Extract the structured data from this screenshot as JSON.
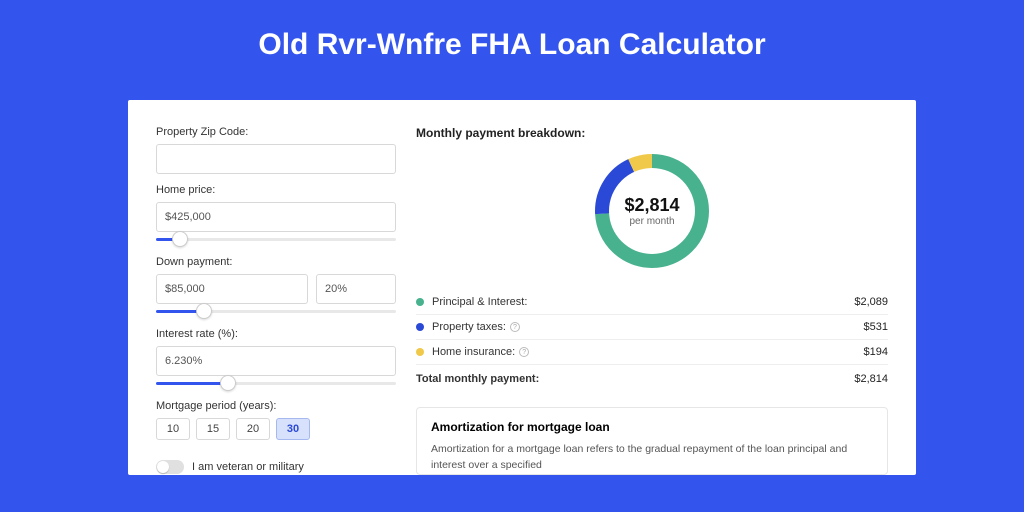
{
  "colors": {
    "page_bg": "#3355ee",
    "panel_bg": "#ffffff",
    "principal": "#47b28d",
    "taxes": "#2a49d6",
    "insurance": "#f0c94a"
  },
  "title": "Old Rvr-Wnfre FHA Loan Calculator",
  "form": {
    "zip": {
      "label": "Property Zip Code:",
      "value": ""
    },
    "home_price": {
      "label": "Home price:",
      "value": "$425,000",
      "slider_pct": 10
    },
    "down_payment": {
      "label": "Down payment:",
      "amount": "$85,000",
      "percent": "20%",
      "slider_pct": 20
    },
    "interest": {
      "label": "Interest rate (%):",
      "value": "6.230%",
      "slider_pct": 30
    },
    "period": {
      "label": "Mortgage period (years):",
      "options": [
        "10",
        "15",
        "20",
        "30"
      ],
      "selected": "30"
    },
    "veteran": {
      "label": "I am veteran or military",
      "on": false
    }
  },
  "breakdown": {
    "title": "Monthly payment breakdown:",
    "center_amount": "$2,814",
    "center_sub": "per month",
    "rows": [
      {
        "label": "Principal & Interest:",
        "value": "$2,089",
        "color": "#47b28d",
        "info": false
      },
      {
        "label": "Property taxes:",
        "value": "$531",
        "color": "#2a49d6",
        "info": true
      },
      {
        "label": "Home insurance:",
        "value": "$194",
        "color": "#f0c94a",
        "info": true
      }
    ],
    "total_label": "Total monthly payment:",
    "total_value": "$2,814",
    "donut": {
      "slices": [
        74,
        19,
        7
      ]
    }
  },
  "amort": {
    "title": "Amortization for mortgage loan",
    "text": "Amortization for a mortgage loan refers to the gradual repayment of the loan principal and interest over a specified"
  }
}
